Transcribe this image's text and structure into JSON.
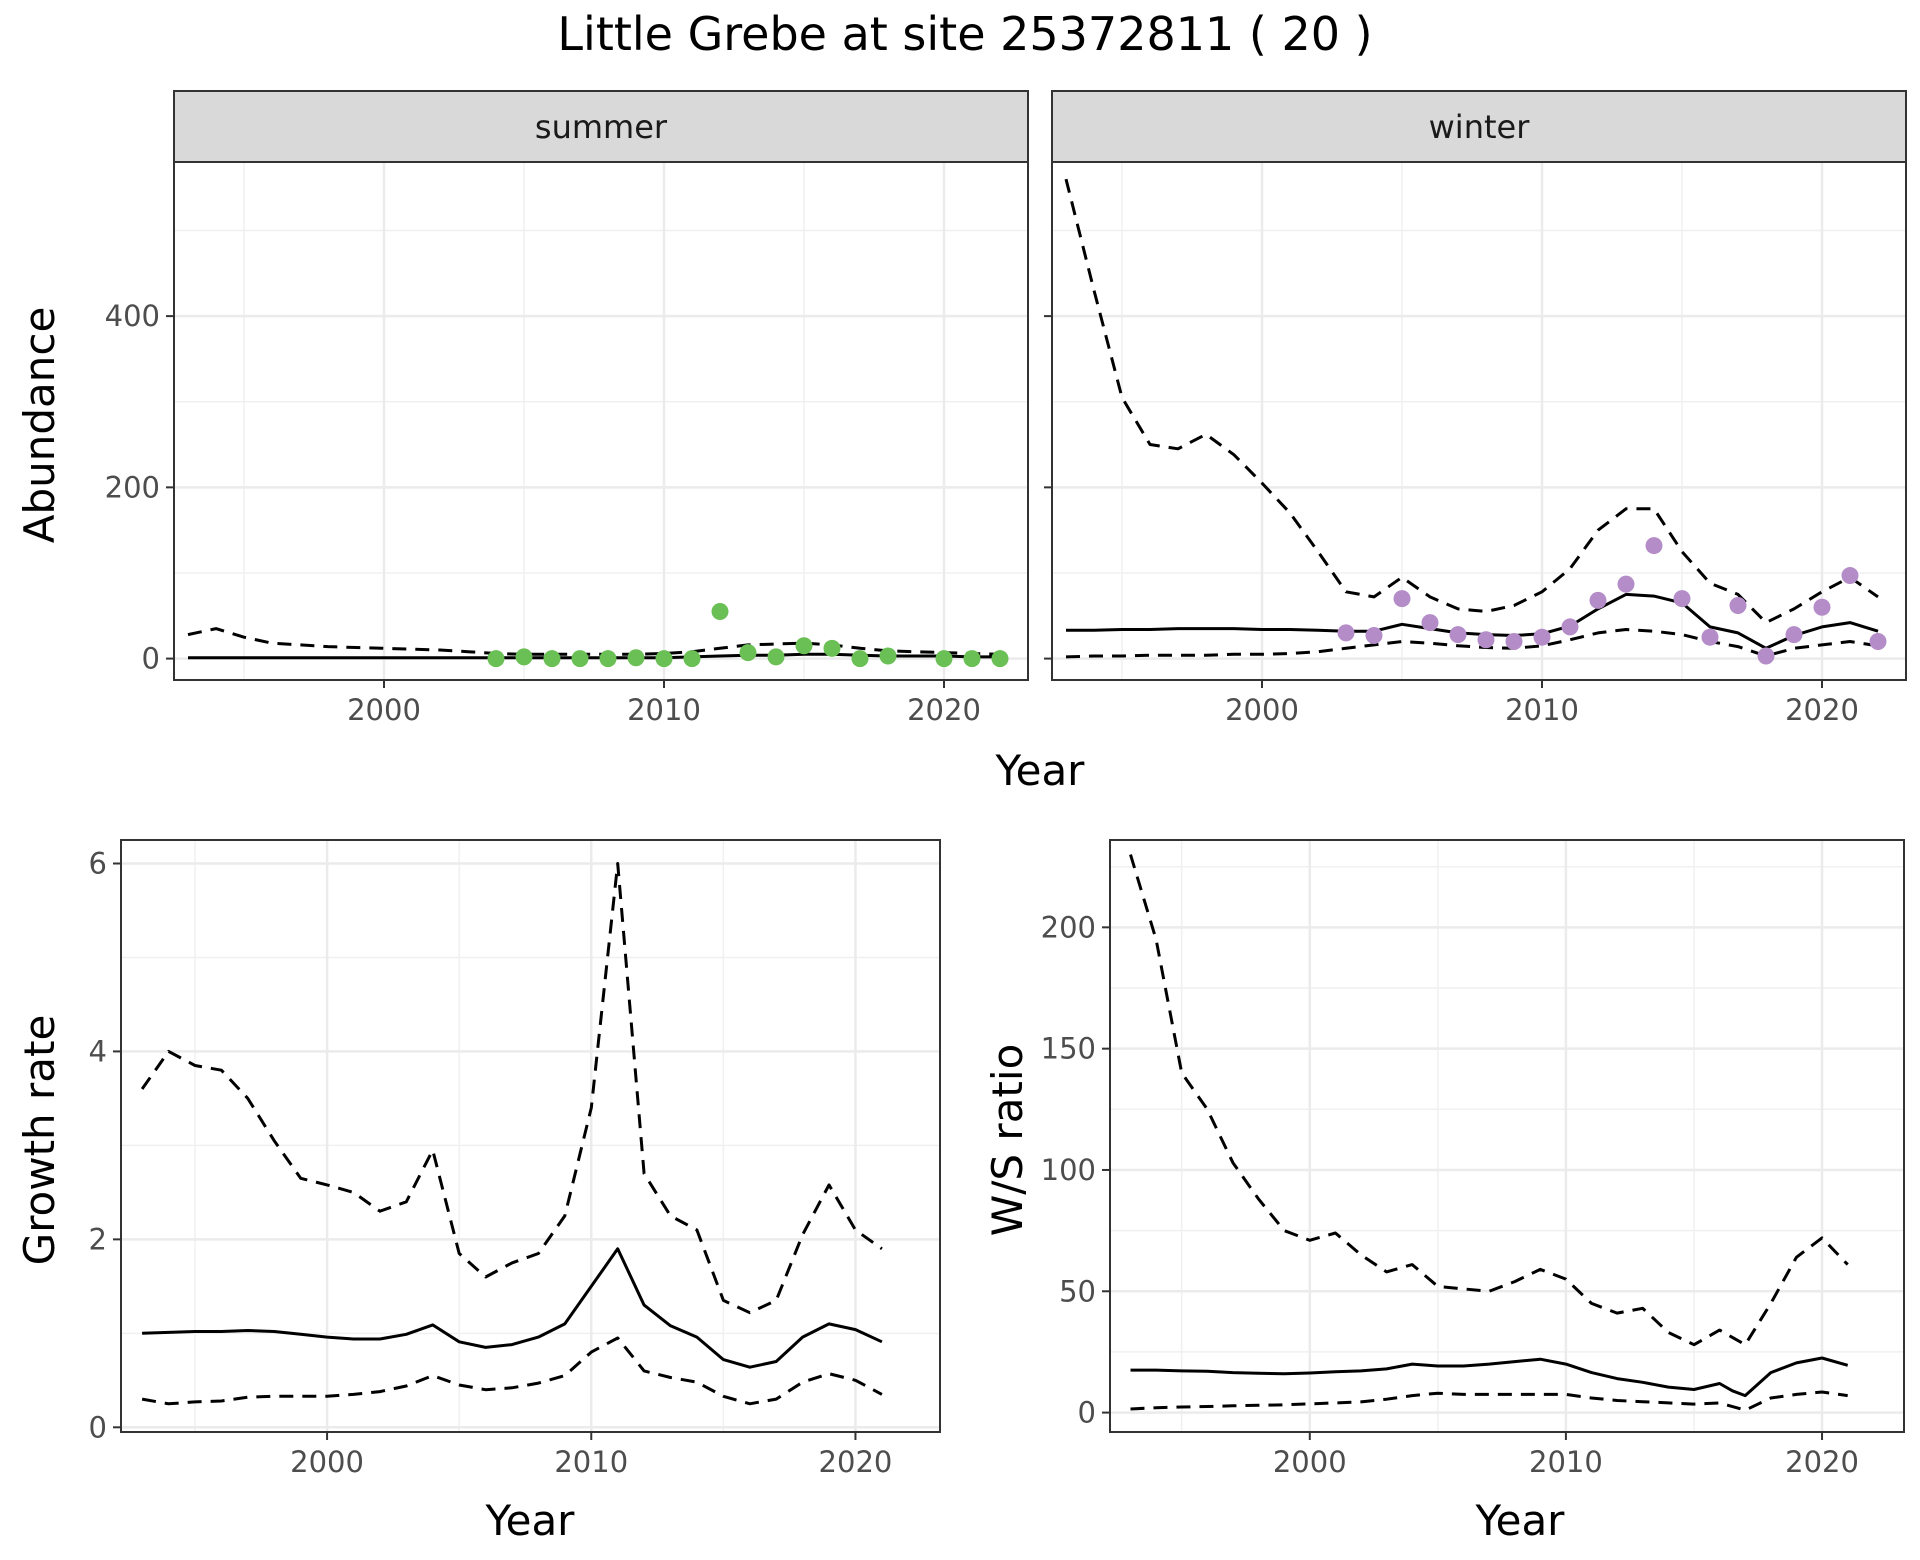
{
  "chart_data": [
    {
      "type": "line",
      "title": "Little Grebe at site 25372811 ( 20 )",
      "panel": "summer",
      "xlabel": "Year",
      "ylabel": "Abundance",
      "xlim": [
        1992.5,
        2023
      ],
      "ylim": [
        -25,
        580
      ],
      "x_ticks": [
        2000,
        2010,
        2020
      ],
      "y_ticks": [
        0,
        200,
        400
      ],
      "grid": true,
      "point_color": "#6abf55",
      "series": [
        {
          "style": "solid",
          "x": [
            1993,
            1994,
            1995,
            1996,
            1997,
            1998,
            1999,
            2000,
            2001,
            2002,
            2003,
            2004,
            2005,
            2006,
            2007,
            2008,
            2009,
            2010,
            2011,
            2012,
            2013,
            2014,
            2015,
            2016,
            2017,
            2018,
            2019,
            2020,
            2021,
            2022
          ],
          "values": [
            1,
            1,
            1,
            1,
            1,
            1,
            1,
            1,
            1,
            1,
            1,
            1,
            1,
            1,
            1,
            1,
            1,
            1,
            2,
            3,
            4,
            4,
            5,
            5,
            4,
            3,
            3,
            3,
            2,
            2
          ]
        },
        {
          "style": "dashed",
          "x": [
            1993,
            1994,
            1995,
            1996,
            1997,
            1998,
            1999,
            2000,
            2001,
            2002,
            2003,
            2004,
            2005,
            2006,
            2007,
            2008,
            2009,
            2010,
            2011,
            2012,
            2013,
            2014,
            2015,
            2016,
            2017,
            2018,
            2019,
            2020,
            2021,
            2022
          ],
          "values": [
            28,
            35,
            25,
            18,
            16,
            14,
            13,
            12,
            11,
            10,
            8,
            6,
            5,
            5,
            5,
            5,
            5,
            6,
            8,
            12,
            16,
            17,
            18,
            16,
            12,
            9,
            8,
            7,
            6,
            5
          ]
        },
        {
          "style": "points",
          "x": [
            2004,
            2005,
            2006,
            2007,
            2008,
            2009,
            2010,
            2011,
            2012,
            2013,
            2014,
            2015,
            2016,
            2017,
            2018,
            2020,
            2021,
            2022
          ],
          "values": [
            0,
            2,
            0,
            0,
            0,
            1,
            0,
            0,
            55,
            7,
            2,
            15,
            12,
            0,
            3,
            0,
            0,
            0
          ]
        }
      ]
    },
    {
      "type": "line",
      "panel": "winter",
      "xlabel": "Year",
      "ylabel": "Abundance",
      "xlim": [
        1992.5,
        2023
      ],
      "ylim": [
        -25,
        580
      ],
      "x_ticks": [
        2000,
        2010,
        2020
      ],
      "y_ticks": [
        0,
        200,
        400
      ],
      "grid": true,
      "point_color": "#b48cc8",
      "series": [
        {
          "style": "solid",
          "x": [
            1993,
            1994,
            1995,
            1996,
            1997,
            1998,
            1999,
            2000,
            2001,
            2002,
            2003,
            2004,
            2005,
            2006,
            2007,
            2008,
            2009,
            2010,
            2011,
            2012,
            2013,
            2014,
            2015,
            2016,
            2017,
            2018,
            2019,
            2020,
            2021,
            2022
          ],
          "values": [
            33,
            33,
            34,
            34,
            35,
            35,
            35,
            34,
            34,
            33,
            32,
            32,
            40,
            35,
            30,
            28,
            27,
            29,
            38,
            58,
            75,
            73,
            65,
            37,
            30,
            12,
            27,
            37,
            42,
            32
          ]
        },
        {
          "style": "dashed",
          "x": [
            1993,
            1994,
            1995,
            1996,
            1997,
            1998,
            1999,
            2000,
            2001,
            2002,
            2003,
            2004,
            2005,
            2006,
            2007,
            2008,
            2009,
            2010,
            2011,
            2012,
            2013,
            2014,
            2015,
            2016,
            2017,
            2018,
            2019,
            2020,
            2021,
            2022
          ],
          "values": [
            560,
            430,
            305,
            250,
            245,
            262,
            238,
            205,
            170,
            125,
            78,
            72,
            95,
            72,
            58,
            55,
            62,
            78,
            105,
            150,
            175,
            175,
            125,
            88,
            75,
            42,
            58,
            78,
            95,
            72
          ]
        },
        {
          "style": "dashed",
          "x": [
            1993,
            1994,
            1995,
            1996,
            1997,
            1998,
            1999,
            2000,
            2001,
            2002,
            2003,
            2004,
            2005,
            2006,
            2007,
            2008,
            2009,
            2010,
            2011,
            2012,
            2013,
            2014,
            2015,
            2016,
            2017,
            2018,
            2019,
            2020,
            2021,
            2022
          ],
          "values": [
            2,
            3,
            3,
            4,
            4,
            4,
            5,
            5,
            6,
            8,
            12,
            16,
            20,
            18,
            15,
            13,
            12,
            15,
            22,
            30,
            34,
            32,
            28,
            20,
            14,
            3,
            12,
            16,
            20,
            15
          ]
        },
        {
          "style": "points",
          "x": [
            2003,
            2004,
            2005,
            2006,
            2007,
            2008,
            2009,
            2010,
            2011,
            2012,
            2013,
            2014,
            2015,
            2016,
            2017,
            2018,
            2019,
            2020,
            2021,
            2022
          ],
          "values": [
            30,
            27,
            70,
            42,
            28,
            22,
            20,
            25,
            37,
            68,
            87,
            132,
            70,
            25,
            62,
            3,
            28,
            60,
            97,
            20
          ]
        }
      ]
    },
    {
      "type": "line",
      "panel": "growth",
      "xlabel": "Year",
      "ylabel": "Growth rate",
      "xlim": [
        1992.2,
        2023.2
      ],
      "ylim": [
        -0.05,
        6.25
      ],
      "x_ticks": [
        2000,
        2010,
        2020
      ],
      "y_ticks": [
        0,
        2,
        4,
        6
      ],
      "grid": true,
      "series": [
        {
          "style": "solid",
          "x": [
            1993,
            1994,
            1995,
            1996,
            1997,
            1998,
            1999,
            2000,
            2001,
            2002,
            2003,
            2004,
            2005,
            2006,
            2007,
            2008,
            2009,
            2010,
            2011,
            2012,
            2013,
            2014,
            2015,
            2016,
            2017,
            2018,
            2019,
            2020,
            2021
          ],
          "values": [
            1.0,
            1.01,
            1.02,
            1.02,
            1.03,
            1.02,
            0.99,
            0.96,
            0.94,
            0.94,
            0.99,
            1.09,
            0.91,
            0.85,
            0.88,
            0.96,
            1.1,
            1.5,
            1.9,
            1.3,
            1.08,
            0.96,
            0.72,
            0.64,
            0.7,
            0.96,
            1.1,
            1.04,
            0.91
          ]
        },
        {
          "style": "dashed",
          "x": [
            1993,
            1994,
            1995,
            1996,
            1997,
            1998,
            1999,
            2000,
            2001,
            2002,
            2003,
            2004,
            2005,
            2006,
            2007,
            2008,
            2009,
            2010,
            2011,
            2012,
            2013,
            2014,
            2015,
            2016,
            2017,
            2018,
            2019,
            2020,
            2021
          ],
          "values": [
            3.6,
            4.0,
            3.85,
            3.8,
            3.5,
            3.05,
            2.65,
            2.58,
            2.5,
            2.3,
            2.4,
            2.95,
            1.85,
            1.6,
            1.75,
            1.85,
            2.25,
            3.4,
            6.0,
            2.7,
            2.25,
            2.1,
            1.35,
            1.22,
            1.35,
            2.05,
            2.58,
            2.1,
            1.9
          ]
        },
        {
          "style": "dashed",
          "x": [
            1993,
            1994,
            1995,
            1996,
            1997,
            1998,
            1999,
            2000,
            2001,
            2002,
            2003,
            2004,
            2005,
            2006,
            2007,
            2008,
            2009,
            2010,
            2011,
            2012,
            2013,
            2014,
            2015,
            2016,
            2017,
            2018,
            2019,
            2020,
            2021
          ],
          "values": [
            0.3,
            0.25,
            0.27,
            0.28,
            0.32,
            0.33,
            0.33,
            0.33,
            0.35,
            0.38,
            0.44,
            0.55,
            0.45,
            0.4,
            0.42,
            0.47,
            0.55,
            0.8,
            0.95,
            0.6,
            0.53,
            0.48,
            0.33,
            0.25,
            0.3,
            0.48,
            0.57,
            0.5,
            0.35
          ]
        }
      ]
    },
    {
      "type": "line",
      "panel": "ratio",
      "xlabel": "Year",
      "ylabel": "W/S ratio",
      "xlim": [
        1992.2,
        2023.2
      ],
      "ylim": [
        -8,
        236
      ],
      "x_ticks": [
        2000,
        2010,
        2020
      ],
      "y_ticks": [
        0,
        50,
        100,
        150,
        200
      ],
      "grid": true,
      "series": [
        {
          "style": "solid",
          "x": [
            1993,
            1994,
            1995,
            1996,
            1997,
            1998,
            1999,
            2000,
            2001,
            2002,
            2003,
            2004,
            2005,
            2006,
            2007,
            2008,
            2009,
            2010,
            2011,
            2012,
            2013,
            2014,
            2015,
            2016,
            2016.5,
            2017,
            2018,
            2019,
            2020,
            2021
          ],
          "values": [
            17.5,
            17.5,
            17.2,
            17,
            16.5,
            16.2,
            16,
            16.3,
            16.8,
            17.2,
            18,
            20,
            19.2,
            19.2,
            20,
            21,
            22,
            20,
            16.5,
            14,
            12.5,
            10.5,
            9.5,
            12,
            9,
            7,
            16.5,
            20.5,
            22.5,
            19.5
          ]
        },
        {
          "style": "dashed",
          "x": [
            1993,
            1994,
            1995,
            1996,
            1997,
            1998,
            1999,
            2000,
            2001,
            2002,
            2003,
            2004,
            2005,
            2006,
            2007,
            2008,
            2009,
            2010,
            2011,
            2012,
            2013,
            2014,
            2015,
            2016,
            2017,
            2018,
            2019,
            2020,
            2021
          ],
          "values": [
            230,
            195,
            140,
            125,
            103,
            88,
            75,
            71,
            74,
            65,
            58,
            61,
            52,
            51,
            50,
            54,
            59,
            55,
            45,
            41,
            43,
            33,
            28,
            34,
            28,
            45,
            64,
            72,
            61
          ]
        },
        {
          "style": "dashed",
          "x": [
            1993,
            1994,
            1995,
            1996,
            1997,
            1998,
            1999,
            2000,
            2001,
            2002,
            2003,
            2004,
            2005,
            2006,
            2007,
            2008,
            2009,
            2010,
            2011,
            2012,
            2013,
            2014,
            2015,
            2016,
            2017,
            2018,
            2019,
            2020,
            2021
          ],
          "values": [
            1.5,
            2,
            2.3,
            2.5,
            2.8,
            3,
            3.2,
            3.6,
            4,
            4.4,
            5.5,
            7,
            8,
            7.5,
            7.5,
            7.5,
            7.5,
            7.5,
            6,
            5,
            4.5,
            4,
            3.5,
            4,
            1,
            6,
            7.5,
            8.5,
            7
          ]
        }
      ]
    }
  ]
}
